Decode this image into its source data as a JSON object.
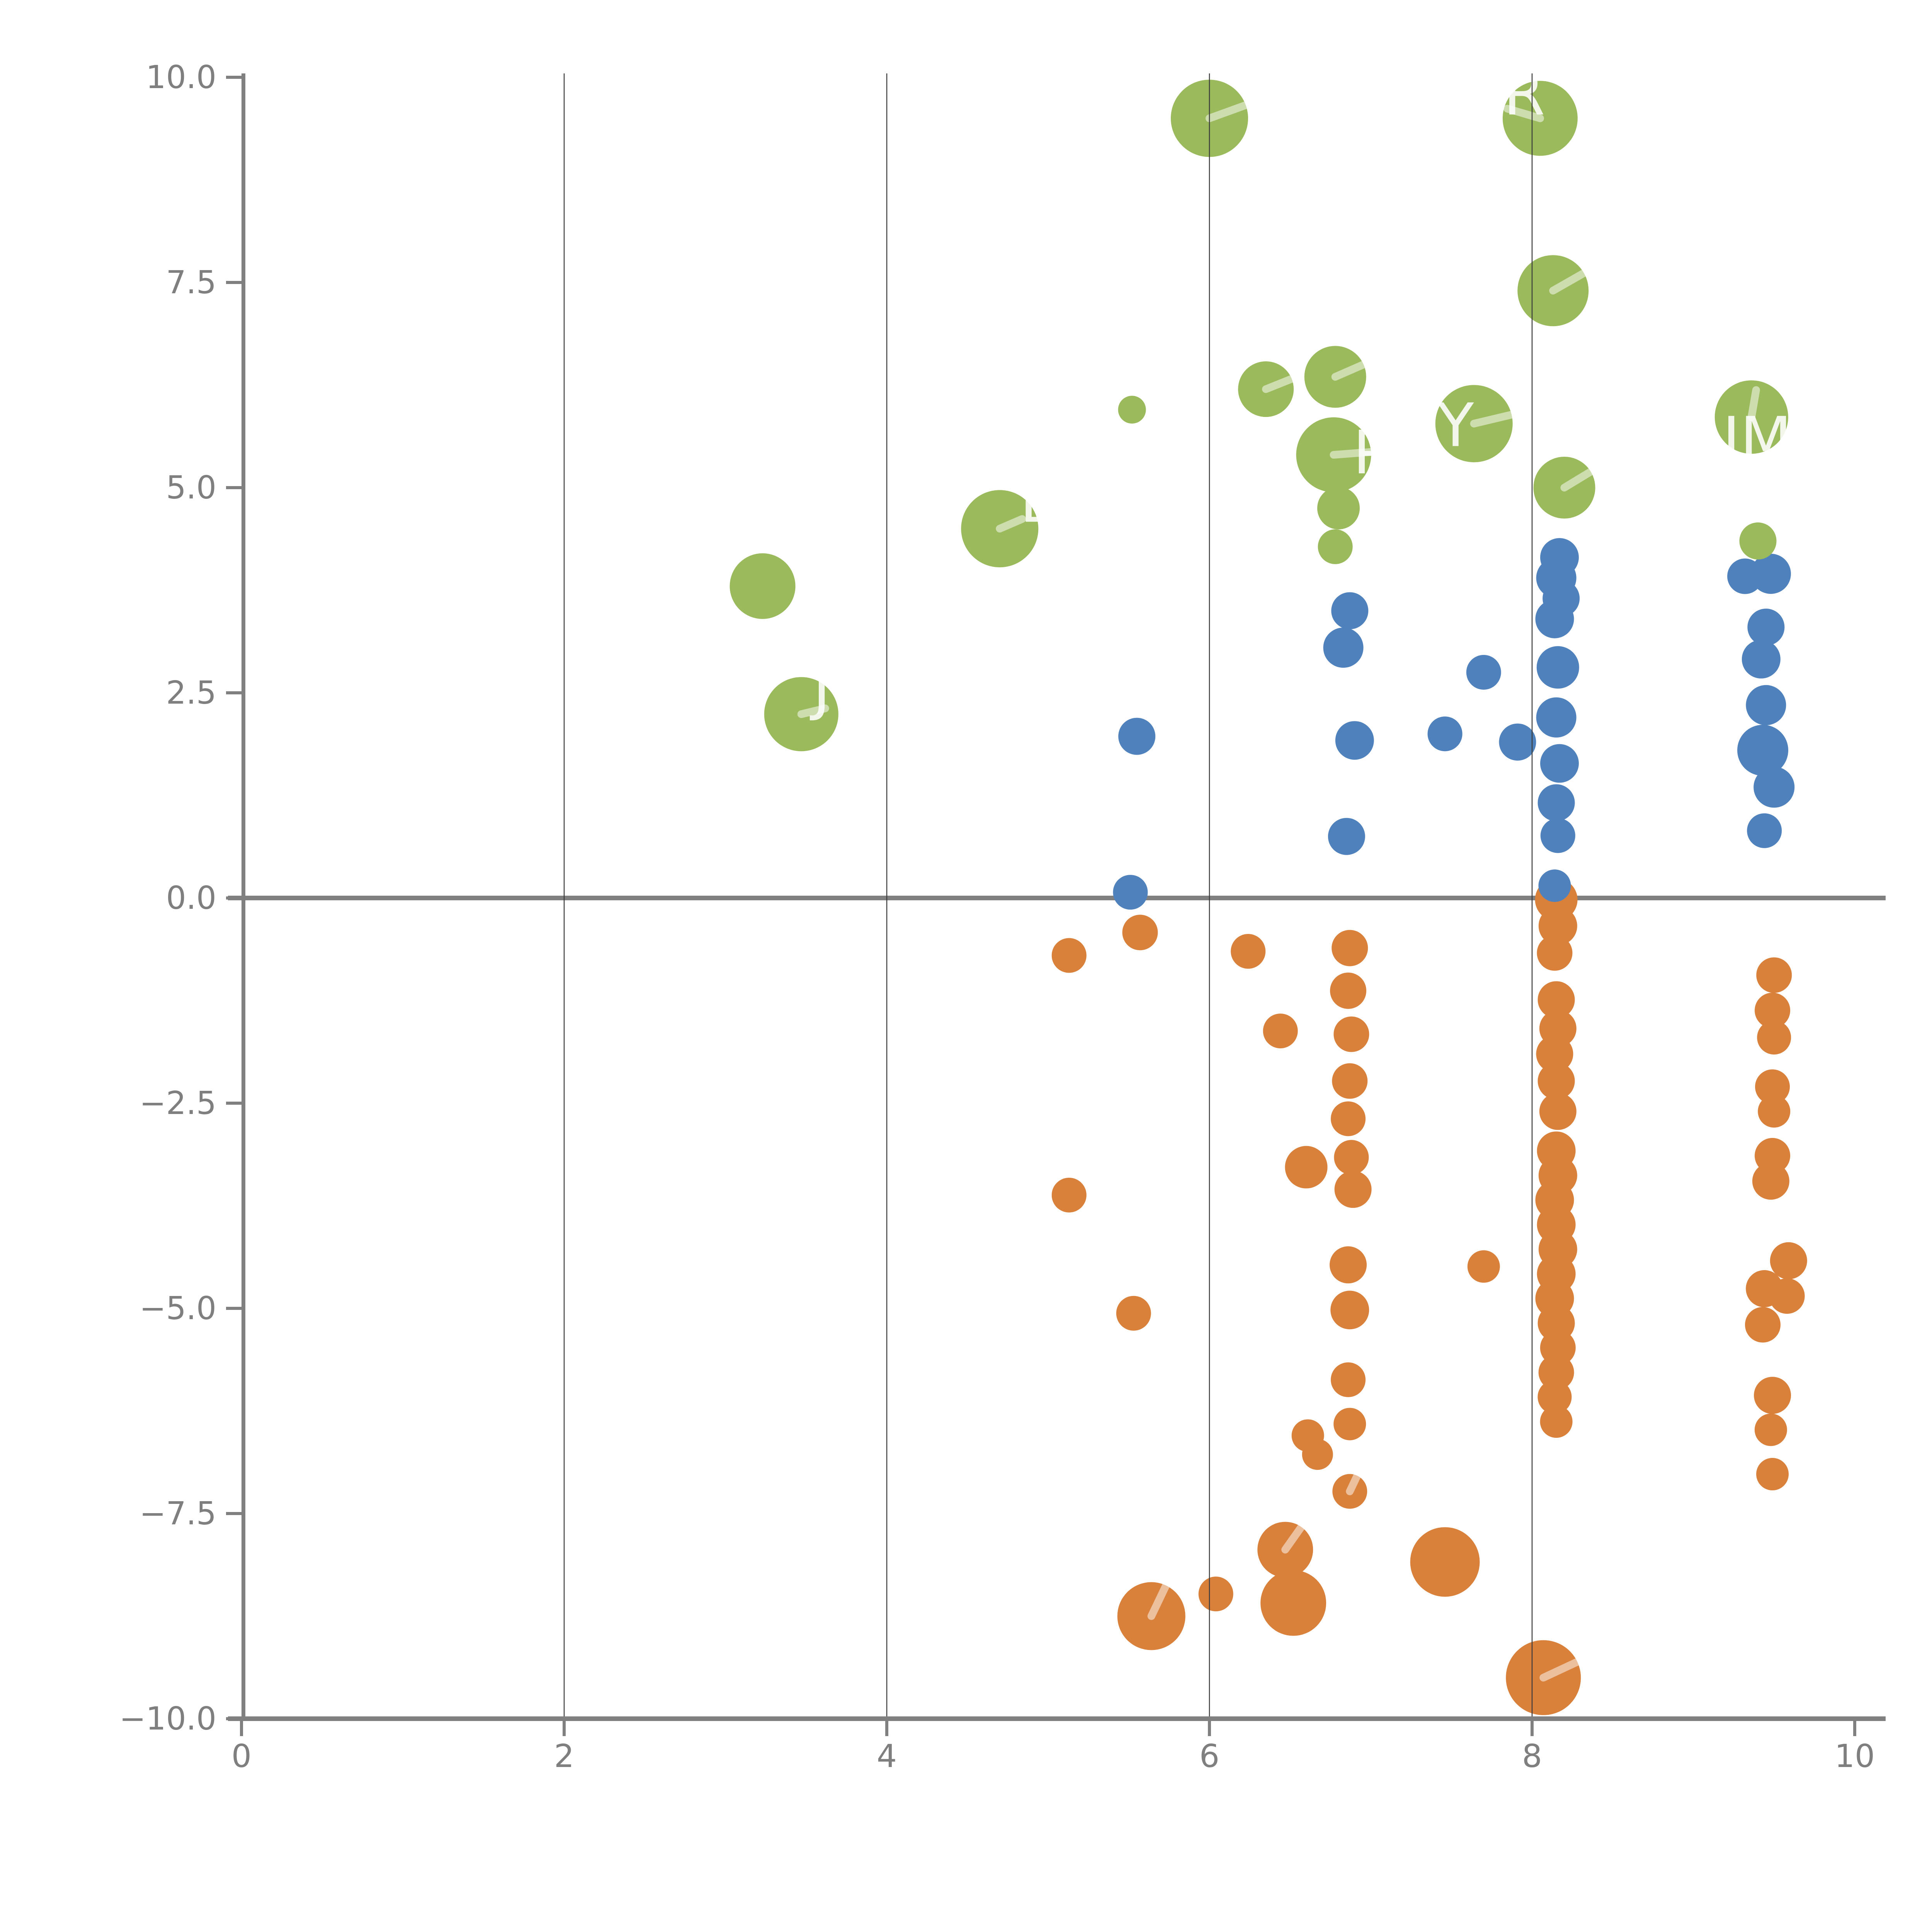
{
  "chart_data": {
    "type": "scatter",
    "subtype": "bubble",
    "title": "",
    "xlabel": "",
    "ylabel": "",
    "xlim": [
      0,
      10
    ],
    "ylim": [
      -10,
      10
    ],
    "grid": "vertical-only",
    "legend_position": "none",
    "axis_color": "#808080",
    "tick_label_color": "#7f7f7f",
    "grid_color": "#3c3c3c",
    "annotation_color": "#ffffff",
    "background_color": "#ffffff",
    "x_ticks": [
      {
        "value": 0,
        "label": "0"
      },
      {
        "value": 2,
        "label": "2"
      },
      {
        "value": 4,
        "label": "4"
      },
      {
        "value": 6,
        "label": "6"
      },
      {
        "value": 8,
        "label": "8"
      },
      {
        "value": 10,
        "label": "10"
      }
    ],
    "y_ticks": [
      {
        "value": 10,
        "label": "10.0"
      },
      {
        "value": 7.5,
        "label": "7.5"
      },
      {
        "value": 5,
        "label": "5.0"
      },
      {
        "value": 2.5,
        "label": "2.5"
      },
      {
        "value": 0,
        "label": "0.0"
      },
      {
        "value": -2.5,
        "label": "−2.5"
      },
      {
        "value": -5,
        "label": "−5.0"
      },
      {
        "value": -7.5,
        "label": "−7.5"
      },
      {
        "value": -10,
        "label": "−10.0"
      }
    ],
    "vertical_gridlines": [
      2,
      4,
      6,
      8
    ],
    "zero_line_y": 0,
    "series": [
      {
        "name": "orange",
        "color": "#d9803b",
        "points": [
          {
            "x": 5.57,
            "y": -0.42,
            "r": 46
          },
          {
            "x": 5.13,
            "y": -0.7,
            "r": 45
          },
          {
            "x": 6.24,
            "y": -0.65,
            "r": 45
          },
          {
            "x": 6.44,
            "y": -1.62,
            "r": 45
          },
          {
            "x": 5.13,
            "y": -3.62,
            "r": 45
          },
          {
            "x": 5.53,
            "y": -5.06,
            "r": 45
          },
          {
            "x": 7.7,
            "y": -4.49,
            "r": 42
          },
          {
            "x": 6.6,
            "y": -3.28,
            "r": 55
          },
          {
            "x": 6.61,
            "y": -6.55,
            "r": 42
          },
          {
            "x": 6.67,
            "y": -6.78,
            "r": 40
          },
          {
            "x": 6.87,
            "y": -0.61,
            "r": 47
          },
          {
            "x": 6.86,
            "y": -1.13,
            "r": 47
          },
          {
            "x": 6.88,
            "y": -1.66,
            "r": 46
          },
          {
            "x": 6.87,
            "y": -2.23,
            "r": 46
          },
          {
            "x": 6.86,
            "y": -2.69,
            "r": 45
          },
          {
            "x": 6.88,
            "y": -3.16,
            "r": 45
          },
          {
            "x": 6.89,
            "y": -3.55,
            "r": 48
          },
          {
            "x": 6.86,
            "y": -4.47,
            "r": 48
          },
          {
            "x": 6.87,
            "y": -5.02,
            "r": 50
          },
          {
            "x": 6.86,
            "y": -5.87,
            "r": 45
          },
          {
            "x": 6.87,
            "y": -6.41,
            "r": 42
          },
          {
            "x": 6.87,
            "y": -7.23,
            "r": 45,
            "line": [
              45,
              -95
            ]
          },
          {
            "x": 8.15,
            "y": -0.02,
            "r": 55
          },
          {
            "x": 8.16,
            "y": -0.34,
            "r": 50
          },
          {
            "x": 8.14,
            "y": -0.67,
            "r": 46
          },
          {
            "x": 8.15,
            "y": -1.24,
            "r": 48
          },
          {
            "x": 8.16,
            "y": -1.59,
            "r": 48
          },
          {
            "x": 8.14,
            "y": -1.9,
            "r": 48
          },
          {
            "x": 8.15,
            "y": -2.23,
            "r": 48
          },
          {
            "x": 8.16,
            "y": -2.6,
            "r": 48
          },
          {
            "x": 8.15,
            "y": -3.08,
            "r": 50
          },
          {
            "x": 8.16,
            "y": -3.38,
            "r": 50
          },
          {
            "x": 8.14,
            "y": -3.68,
            "r": 50
          },
          {
            "x": 8.15,
            "y": -3.98,
            "r": 50
          },
          {
            "x": 8.16,
            "y": -4.28,
            "r": 50
          },
          {
            "x": 8.15,
            "y": -4.58,
            "r": 50
          },
          {
            "x": 8.14,
            "y": -4.88,
            "r": 50
          },
          {
            "x": 8.15,
            "y": -5.18,
            "r": 48
          },
          {
            "x": 8.16,
            "y": -5.48,
            "r": 46
          },
          {
            "x": 8.15,
            "y": -5.78,
            "r": 46
          },
          {
            "x": 8.14,
            "y": -6.08,
            "r": 44
          },
          {
            "x": 8.15,
            "y": -6.38,
            "r": 42
          },
          {
            "x": 9.5,
            "y": -0.94,
            "r": 46
          },
          {
            "x": 9.49,
            "y": -1.37,
            "r": 46
          },
          {
            "x": 9.5,
            "y": -1.7,
            "r": 44
          },
          {
            "x": 9.49,
            "y": -2.3,
            "r": 45
          },
          {
            "x": 9.5,
            "y": -2.6,
            "r": 42
          },
          {
            "x": 9.49,
            "y": -3.14,
            "r": 46
          },
          {
            "x": 9.48,
            "y": -3.45,
            "r": 48
          },
          {
            "x": 9.59,
            "y": -4.42,
            "r": 48
          },
          {
            "x": 9.58,
            "y": -4.85,
            "r": 46
          },
          {
            "x": 9.44,
            "y": -4.76,
            "r": 48
          },
          {
            "x": 9.43,
            "y": -5.2,
            "r": 46
          },
          {
            "x": 9.49,
            "y": -6.06,
            "r": 48
          },
          {
            "x": 9.48,
            "y": -6.48,
            "r": 42
          },
          {
            "x": 9.49,
            "y": -7.02,
            "r": 42
          },
          {
            "x": 6.04,
            "y": -8.48,
            "r": 45
          },
          {
            "x": 7.46,
            "y": -8.09,
            "r": 90
          },
          {
            "x": 6.47,
            "y": -7.94,
            "r": 72,
            "line": [
              85,
              -120
            ]
          },
          {
            "x": 6.52,
            "y": -8.59,
            "r": 85
          },
          {
            "x": 5.64,
            "y": -8.75,
            "r": 88,
            "line": [
              55,
              -115
            ]
          },
          {
            "x": 8.07,
            "y": -9.5,
            "r": 97,
            "line": [
              90,
              -42
            ]
          }
        ]
      },
      {
        "name": "blue",
        "color": "#4f81bd",
        "points": [
          {
            "x": 5.55,
            "y": 1.97,
            "r": 48
          },
          {
            "x": 5.51,
            "y": 0.07,
            "r": 45
          },
          {
            "x": 6.87,
            "y": 3.5,
            "r": 48
          },
          {
            "x": 6.83,
            "y": 3.05,
            "r": 52
          },
          {
            "x": 6.9,
            "y": 1.92,
            "r": 50
          },
          {
            "x": 6.85,
            "y": 0.75,
            "r": 48
          },
          {
            "x": 7.46,
            "y": 2.0,
            "r": 45
          },
          {
            "x": 7.7,
            "y": 2.75,
            "r": 45
          },
          {
            "x": 7.91,
            "y": 1.9,
            "r": 48
          },
          {
            "x": 8.17,
            "y": 4.15,
            "r": 50
          },
          {
            "x": 8.15,
            "y": 3.9,
            "r": 52
          },
          {
            "x": 8.18,
            "y": 3.65,
            "r": 48
          },
          {
            "x": 8.14,
            "y": 3.4,
            "r": 50
          },
          {
            "x": 8.16,
            "y": 2.81,
            "r": 55
          },
          {
            "x": 8.15,
            "y": 2.2,
            "r": 52
          },
          {
            "x": 8.17,
            "y": 1.64,
            "r": 50
          },
          {
            "x": 8.15,
            "y": 1.16,
            "r": 48
          },
          {
            "x": 8.16,
            "y": 0.76,
            "r": 45
          },
          {
            "x": 8.14,
            "y": 0.15,
            "r": 42
          },
          {
            "x": 9.32,
            "y": 3.92,
            "r": 46
          },
          {
            "x": 9.48,
            "y": 3.95,
            "r": 52
          },
          {
            "x": 9.45,
            "y": 3.3,
            "r": 48
          },
          {
            "x": 9.42,
            "y": 2.91,
            "r": 50
          },
          {
            "x": 9.45,
            "y": 2.35,
            "r": 52
          },
          {
            "x": 9.43,
            "y": 1.8,
            "r": 66
          },
          {
            "x": 9.5,
            "y": 1.35,
            "r": 53
          },
          {
            "x": 9.44,
            "y": 0.82,
            "r": 45
          }
        ]
      },
      {
        "name": "green",
        "color": "#9aba5c",
        "points": [
          {
            "x": 6.0,
            "y": 9.5,
            "r": 100,
            "line": [
              165,
              -60
            ]
          },
          {
            "x": 8.05,
            "y": 9.5,
            "r": 97,
            "line": [
              -85,
              -25
            ],
            "label": "R",
            "label_dx": -95,
            "label_dy": -10
          },
          {
            "x": 8.13,
            "y": 7.4,
            "r": 92,
            "line": [
              140,
              -80
            ]
          },
          {
            "x": 6.35,
            "y": 6.2,
            "r": 72,
            "line": [
              150,
              -60
            ]
          },
          {
            "x": 6.78,
            "y": 6.35,
            "r": 80,
            "line": [
              160,
              -70
            ]
          },
          {
            "x": 5.52,
            "y": 5.95,
            "r": 36
          },
          {
            "x": 7.64,
            "y": 5.78,
            "r": 100,
            "line": [
              105,
              -25
            ],
            "label": "Y",
            "label_dx": -95,
            "label_dy": 58
          },
          {
            "x": 9.36,
            "y": 5.86,
            "r": 95,
            "line": [
              12,
              -70
            ],
            "label": "IM",
            "label_dx": -75,
            "label_dy": 110
          },
          {
            "x": 6.77,
            "y": 5.4,
            "r": 97,
            "line": [
              105,
              -8
            ],
            "label": "P",
            "label_dx": 50,
            "label_dy": 48
          },
          {
            "x": 8.2,
            "y": 5.0,
            "r": 80,
            "line": [
              140,
              -85
            ]
          },
          {
            "x": 6.8,
            "y": 4.75,
            "r": 55
          },
          {
            "x": 6.78,
            "y": 4.28,
            "r": 45
          },
          {
            "x": 9.4,
            "y": 4.35,
            "r": 48
          },
          {
            "x": 4.7,
            "y": 4.5,
            "r": 100,
            "line": [
              58,
              -25
            ],
            "label": "B",
            "label_dx": 52,
            "label_dy": -18
          },
          {
            "x": 3.23,
            "y": 3.8,
            "r": 85
          },
          {
            "x": 3.47,
            "y": 2.24,
            "r": 96,
            "line": [
              62,
              -15
            ],
            "label": "J",
            "label_dx": 30,
            "label_dy": -15
          }
        ]
      }
    ]
  }
}
